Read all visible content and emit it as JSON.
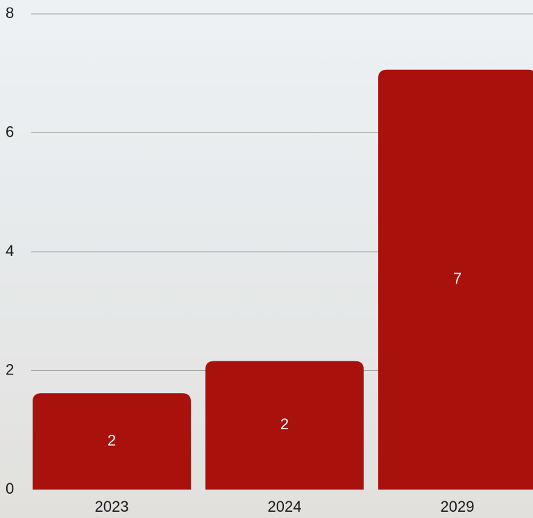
{
  "chart_data": {
    "type": "bar",
    "categories": [
      "2023",
      "2024",
      "2029"
    ],
    "values": [
      1.62,
      2.16,
      7.06
    ],
    "value_labels": [
      "2",
      "2",
      "7"
    ],
    "color": "#a8110c",
    "ylim": [
      0,
      8
    ],
    "yticks": [
      0,
      2,
      4,
      6,
      8
    ],
    "grid": true
  }
}
